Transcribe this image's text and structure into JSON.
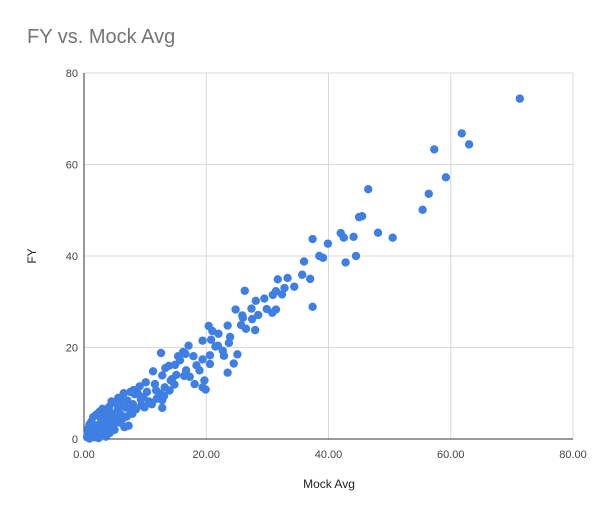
{
  "chart_data": {
    "type": "scatter",
    "title": "FY vs. Mock Avg",
    "xlabel": "Mock Avg",
    "ylabel": "FY",
    "xlim": [
      0,
      80
    ],
    "ylim": [
      0,
      80
    ],
    "xticks": [
      "0.00",
      "20.00",
      "40.00",
      "60.00",
      "80.00"
    ],
    "yticks": [
      "0",
      "20",
      "40",
      "60",
      "80"
    ],
    "grid": true,
    "legend": "none",
    "point_color": "#3f7fe3",
    "series": [
      {
        "name": "FY",
        "points": [
          [
            71.3,
            74.4
          ],
          [
            61.8,
            66.8
          ],
          [
            63.0,
            64.4
          ],
          [
            57.3,
            63.3
          ],
          [
            59.2,
            57.2
          ],
          [
            56.4,
            53.6
          ],
          [
            46.5,
            54.6
          ],
          [
            55.4,
            50.1
          ],
          [
            45.0,
            48.5
          ],
          [
            45.5,
            48.7
          ],
          [
            48.1,
            45.1
          ],
          [
            50.5,
            44.0
          ],
          [
            42.0,
            45.0
          ],
          [
            42.5,
            44.0
          ],
          [
            44.1,
            44.2
          ],
          [
            37.4,
            43.7
          ],
          [
            39.9,
            42.7
          ],
          [
            38.5,
            40.0
          ],
          [
            39.1,
            39.6
          ],
          [
            44.5,
            40.0
          ],
          [
            42.8,
            38.6
          ],
          [
            36.0,
            38.8
          ],
          [
            33.3,
            35.2
          ],
          [
            35.7,
            35.9
          ],
          [
            37.0,
            35.0
          ],
          [
            32.8,
            33.0
          ],
          [
            34.4,
            33.3
          ],
          [
            31.4,
            32.3
          ],
          [
            30.9,
            31.5
          ],
          [
            32.4,
            31.6
          ],
          [
            29.5,
            30.7
          ],
          [
            31.7,
            34.9
          ],
          [
            26.3,
            32.4
          ],
          [
            28.1,
            30.2
          ],
          [
            27.4,
            28.5
          ],
          [
            29.9,
            28.4
          ],
          [
            25.9,
            27.0
          ],
          [
            24.8,
            28.3
          ],
          [
            37.4,
            28.9
          ],
          [
            28.5,
            27.1
          ],
          [
            27.5,
            26.2
          ],
          [
            26.0,
            26.5
          ],
          [
            30.8,
            27.6
          ],
          [
            31.4,
            28.3
          ],
          [
            28.0,
            23.8
          ],
          [
            26.5,
            24.1
          ],
          [
            25.7,
            24.9
          ],
          [
            23.5,
            24.8
          ],
          [
            20.4,
            24.7
          ],
          [
            21.0,
            23.6
          ],
          [
            22.0,
            23.0
          ],
          [
            23.9,
            22.3
          ],
          [
            20.8,
            21.7
          ],
          [
            19.4,
            21.5
          ],
          [
            21.5,
            20.2
          ],
          [
            23.7,
            21.0
          ],
          [
            22.7,
            19.3
          ],
          [
            20.6,
            18.3
          ],
          [
            19.4,
            17.4
          ],
          [
            25.1,
            18.5
          ],
          [
            17.1,
            20.4
          ],
          [
            16.2,
            19.0
          ],
          [
            12.6,
            18.8
          ],
          [
            17.9,
            18.1
          ],
          [
            15.7,
            17.2
          ],
          [
            18.4,
            16.1
          ],
          [
            14.9,
            16.2
          ],
          [
            24.5,
            16.5
          ],
          [
            23.5,
            14.5
          ],
          [
            13.3,
            15.5
          ],
          [
            16.7,
            15.0
          ],
          [
            15.1,
            14.0
          ],
          [
            11.3,
            14.8
          ],
          [
            12.8,
            13.9
          ],
          [
            14.4,
            13.1
          ],
          [
            17.3,
            13.6
          ],
          [
            19.7,
            12.8
          ],
          [
            18.1,
            12.0
          ],
          [
            19.4,
            11.3
          ],
          [
            19.9,
            10.8
          ],
          [
            14.2,
            12.8
          ],
          [
            11.6,
            12.0
          ],
          [
            10.1,
            12.4
          ],
          [
            13.2,
            11.3
          ],
          [
            14.0,
            10.6
          ],
          [
            9.1,
            11.5
          ],
          [
            8.1,
            10.7
          ],
          [
            10.3,
            10.3
          ],
          [
            11.8,
            10.6
          ],
          [
            12.5,
            9.9
          ],
          [
            9.7,
            9.2
          ],
          [
            8.3,
            9.8
          ],
          [
            7.6,
            10.3
          ],
          [
            6.5,
            10.0
          ],
          [
            13.1,
            9.4
          ],
          [
            9.3,
            8.7
          ],
          [
            10.9,
            8.0
          ],
          [
            12.8,
            8.5
          ],
          [
            7.1,
            8.4
          ],
          [
            5.9,
            8.9
          ],
          [
            4.5,
            8.2
          ],
          [
            5.2,
            7.8
          ],
          [
            8.0,
            7.6
          ],
          [
            9.4,
            7.4
          ],
          [
            12.8,
            6.8
          ],
          [
            6.2,
            7.3
          ],
          [
            6.8,
            6.9
          ],
          [
            4.1,
            7.0
          ],
          [
            3.0,
            6.6
          ],
          [
            2.5,
            5.9
          ],
          [
            5.5,
            6.4
          ],
          [
            7.6,
            6.1
          ],
          [
            8.5,
            6.5
          ],
          [
            4.5,
            5.6
          ],
          [
            6.0,
            5.4
          ],
          [
            3.5,
            5.1
          ],
          [
            2.0,
            5.3
          ],
          [
            1.5,
            4.8
          ],
          [
            5.1,
            4.6
          ],
          [
            7.0,
            4.9
          ],
          [
            4.0,
            4.0
          ],
          [
            2.8,
            4.3
          ],
          [
            6.2,
            4.2
          ],
          [
            1.2,
            3.8
          ],
          [
            3.2,
            3.5
          ],
          [
            5.8,
            3.6
          ],
          [
            0.9,
            3.2
          ],
          [
            2.2,
            3.0
          ],
          [
            4.5,
            3.1
          ],
          [
            7.3,
            2.9
          ],
          [
            1.6,
            2.6
          ],
          [
            3.8,
            2.4
          ],
          [
            0.7,
            2.3
          ],
          [
            2.6,
            2.0
          ],
          [
            5.0,
            2.0
          ],
          [
            1.1,
            1.7
          ],
          [
            3.3,
            1.5
          ],
          [
            0.6,
            1.3
          ],
          [
            2.0,
            1.2
          ],
          [
            4.2,
            1.3
          ],
          [
            1.4,
            0.9
          ],
          [
            0.8,
            0.7
          ],
          [
            2.8,
            0.8
          ],
          [
            0.5,
            0.4
          ],
          [
            1.8,
            0.4
          ],
          [
            3.6,
            0.5
          ],
          [
            0.9,
            0.1
          ],
          [
            2.4,
            0.2
          ],
          [
            10.6,
            8.2
          ],
          [
            11.9,
            8.8
          ],
          [
            8.8,
            9.9
          ],
          [
            14.8,
            11.9
          ],
          [
            16.4,
            13.8
          ],
          [
            13.9,
            16.0
          ],
          [
            18.9,
            15.0
          ],
          [
            21.9,
            20.4
          ],
          [
            22.9,
            18.2
          ],
          [
            16.6,
            18.6
          ],
          [
            20.6,
            16.4
          ],
          [
            15.4,
            18.1
          ],
          [
            9.9,
            6.9
          ],
          [
            11.1,
            7.6
          ],
          [
            5.6,
            9.0
          ],
          [
            3.9,
            6.2
          ],
          [
            4.8,
            3.0
          ],
          [
            6.6,
            2.6
          ],
          [
            7.9,
            5.5
          ]
        ]
      }
    ]
  }
}
